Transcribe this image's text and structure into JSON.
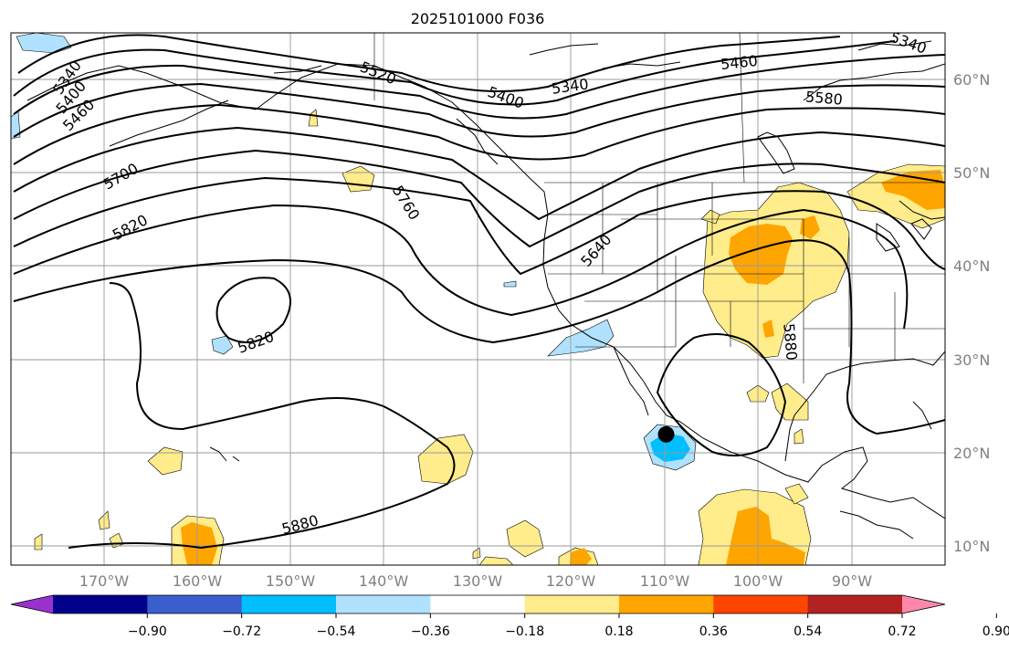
{
  "title": "2025101000 F036",
  "lat_labels": [
    "60°N",
    "50°N",
    "40°N",
    "30°N",
    "20°N",
    "10°N"
  ],
  "lon_labels": [
    "170°W",
    "160°W",
    "150°W",
    "140°W",
    "130°W",
    "120°W",
    "110°W",
    "100°W",
    "90°W"
  ],
  "contour_labels": [
    "5340",
    "5400",
    "5460",
    "5520",
    "5400",
    "5340",
    "5460",
    "5580",
    "5340",
    "5700",
    "5820",
    "5760",
    "5640",
    "5820",
    "5880",
    "5880"
  ],
  "colorbar": {
    "ticks": [
      "−0.90",
      "−0.72",
      "−0.54",
      "−0.36",
      "−0.18",
      "0.18",
      "0.36",
      "0.54",
      "0.72",
      "0.90"
    ],
    "colors": [
      "#9932cc",
      "#00008b",
      "#3a5fcd",
      "#00bfff",
      "#b0e2ff",
      "#ffffff",
      "#ffec8b",
      "#ffa500",
      "#ff4500",
      "#b22222",
      "#ff88aa"
    ]
  },
  "marker": {
    "lon": -110,
    "lat": 22
  }
}
